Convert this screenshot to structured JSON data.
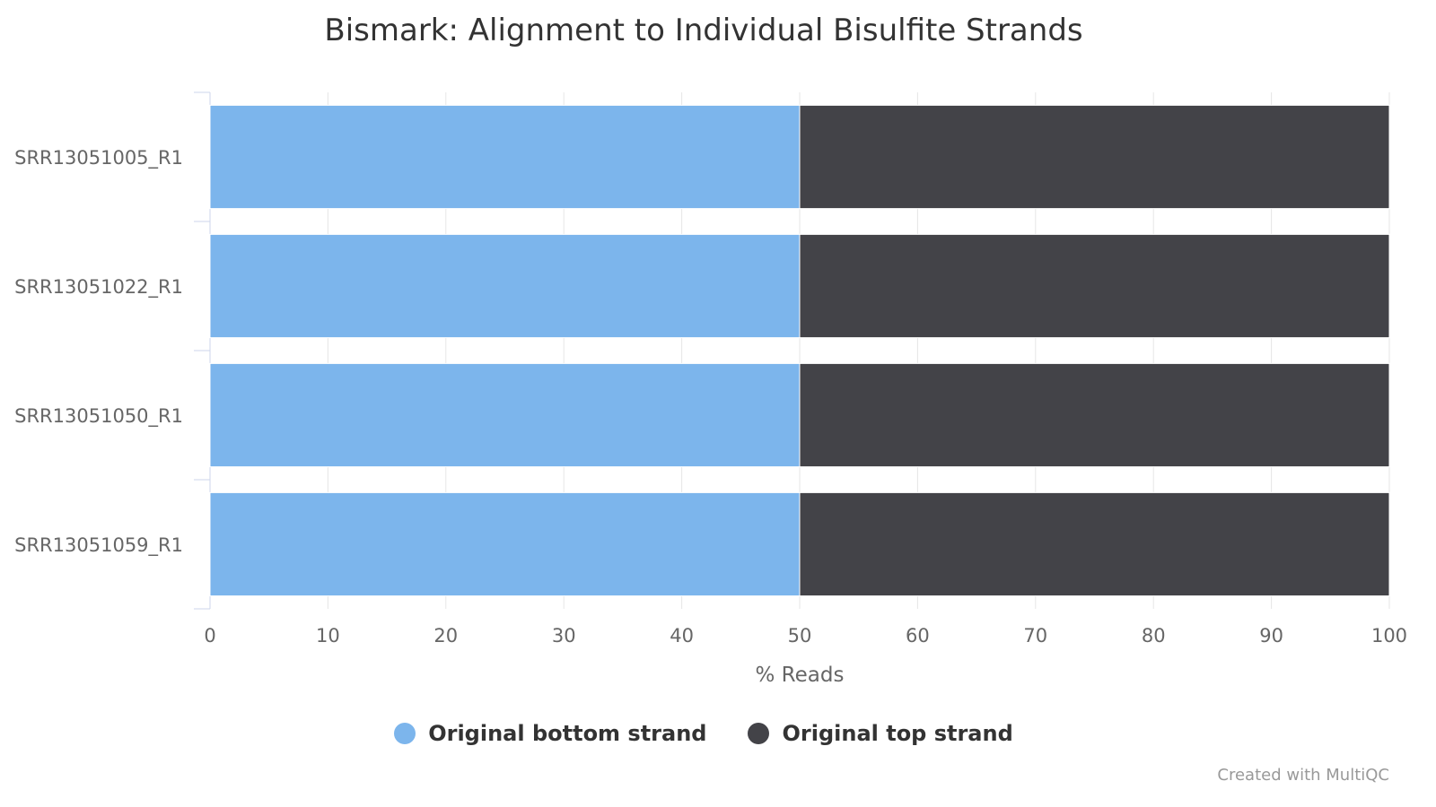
{
  "chart_data": {
    "type": "bar",
    "orientation": "horizontal",
    "stacked": true,
    "title": "Bismark: Alignment to Individual Bisulfite Strands",
    "xlabel": "% Reads",
    "ylabel": "",
    "xlim": [
      0,
      100
    ],
    "x_ticks": [
      0,
      10,
      20,
      30,
      40,
      50,
      60,
      70,
      80,
      90,
      100
    ],
    "grid": true,
    "legend_position": "bottom-center",
    "categories": [
      "SRR13051005_R1",
      "SRR13051022_R1",
      "SRR13051050_R1",
      "SRR13051059_R1"
    ],
    "series": [
      {
        "name": "Original bottom strand",
        "color": "#7cb5ec",
        "values": [
          50,
          50,
          50,
          50
        ]
      },
      {
        "name": "Original top strand",
        "color": "#434348",
        "values": [
          50,
          50,
          50,
          50
        ]
      }
    ]
  },
  "credit": "Created with MultiQC"
}
